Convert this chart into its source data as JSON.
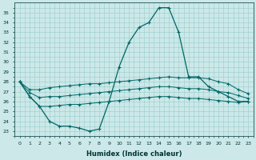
{
  "title": "",
  "xlabel": "Humidex (Indice chaleur)",
  "ylabel": "",
  "background_color": "#cce8e8",
  "grid_color": "#99cccc",
  "line_color": "#006666",
  "xlim": [
    -0.5,
    23.5
  ],
  "ylim": [
    22.5,
    36.0
  ],
  "yticks": [
    23,
    24,
    25,
    26,
    27,
    28,
    29,
    30,
    31,
    32,
    33,
    34,
    35
  ],
  "xticks": [
    0,
    1,
    2,
    3,
    4,
    5,
    6,
    7,
    8,
    9,
    10,
    11,
    12,
    13,
    14,
    15,
    16,
    17,
    18,
    19,
    20,
    21,
    22,
    23
  ],
  "series": {
    "main": [
      28,
      26.5,
      25.5,
      24,
      23.5,
      23.5,
      23.3,
      23.0,
      23.2,
      26,
      29.5,
      32,
      33.5,
      34,
      35.5,
      35.5,
      33,
      28.5,
      28.5,
      27.5,
      27,
      26.5,
      26,
      26
    ],
    "upper": [
      28,
      27.2,
      27.2,
      27.4,
      27.5,
      27.6,
      27.7,
      27.8,
      27.8,
      27.9,
      28.0,
      28.1,
      28.2,
      28.3,
      28.4,
      28.5,
      28.4,
      28.4,
      28.4,
      28.3,
      28.0,
      27.8,
      27.2,
      26.8
    ],
    "avg": [
      28,
      26.9,
      26.4,
      26.5,
      26.5,
      26.6,
      26.7,
      26.8,
      26.9,
      27.0,
      27.1,
      27.2,
      27.3,
      27.4,
      27.5,
      27.5,
      27.4,
      27.3,
      27.3,
      27.2,
      27.0,
      26.9,
      26.6,
      26.3
    ],
    "lower": [
      28,
      26.5,
      25.5,
      25.5,
      25.6,
      25.7,
      25.7,
      25.8,
      25.9,
      26.0,
      26.1,
      26.2,
      26.3,
      26.4,
      26.5,
      26.5,
      26.4,
      26.3,
      26.3,
      26.2,
      26.1,
      26.0,
      25.9,
      26.0
    ]
  },
  "figsize": [
    3.2,
    2.0
  ],
  "dpi": 100
}
